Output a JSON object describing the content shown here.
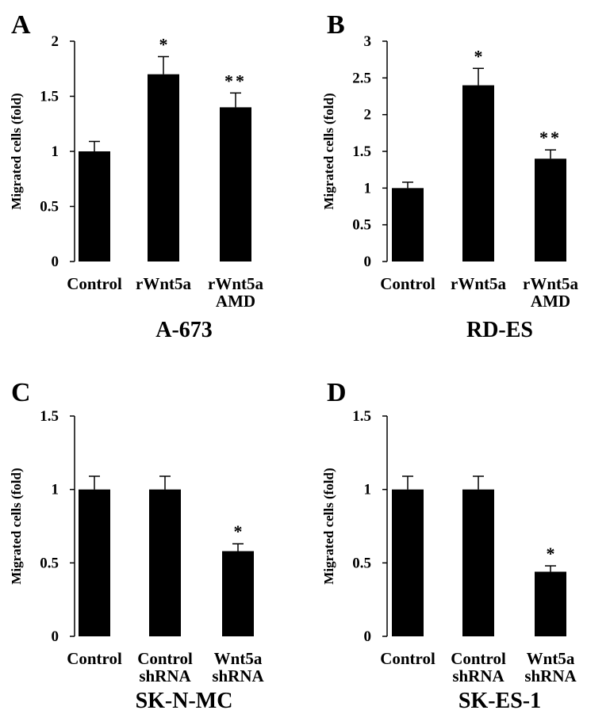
{
  "chart_data": [
    {
      "type": "bar",
      "panel": "A",
      "title": "A-673",
      "ylabel": "Migrated cells (fold)",
      "ylim": [
        0,
        2
      ],
      "yticks": [
        0,
        0.5,
        1,
        1.5,
        2
      ],
      "ytick_labels": [
        "0",
        "0.5",
        "1",
        "1.5",
        "2"
      ],
      "categories": [
        [
          "Control"
        ],
        [
          "rWnt5a"
        ],
        [
          "rWnt5a",
          "AMD"
        ]
      ],
      "values": [
        1.0,
        1.7,
        1.4
      ],
      "errors": [
        0.09,
        0.16,
        0.13
      ],
      "annotations": [
        "",
        "*",
        "**"
      ],
      "bar_color": "#000000"
    },
    {
      "type": "bar",
      "panel": "B",
      "title": "RD-ES",
      "ylabel": "Migrated cells (fold)",
      "ylim": [
        0,
        3
      ],
      "yticks": [
        0,
        0.5,
        1,
        1.5,
        2,
        2.5,
        3
      ],
      "ytick_labels": [
        "0",
        "0.5",
        "1",
        "1.5",
        "2",
        "2.5",
        "3"
      ],
      "categories": [
        [
          "Control"
        ],
        [
          "rWnt5a"
        ],
        [
          "rWnt5a",
          "AMD"
        ]
      ],
      "values": [
        1.0,
        2.4,
        1.4
      ],
      "errors": [
        0.08,
        0.23,
        0.12
      ],
      "annotations": [
        "",
        "*",
        "**"
      ],
      "bar_color": "#000000"
    },
    {
      "type": "bar",
      "panel": "C",
      "title": "SK-N-MC",
      "ylabel": "Migrated cells (fold)",
      "ylim": [
        0,
        1.5
      ],
      "yticks": [
        0,
        0.5,
        1,
        1.5
      ],
      "ytick_labels": [
        "0",
        "0.5",
        "1",
        "1.5"
      ],
      "categories": [
        [
          "Control"
        ],
        [
          "Control",
          "shRNA"
        ],
        [
          "Wnt5a",
          "shRNA"
        ]
      ],
      "values": [
        1.0,
        1.0,
        0.58
      ],
      "errors": [
        0.09,
        0.09,
        0.05
      ],
      "annotations": [
        "",
        "",
        "*"
      ],
      "bar_color": "#000000"
    },
    {
      "type": "bar",
      "panel": "D",
      "title": "SK-ES-1",
      "ylabel": "Migrated cells (fold)",
      "ylim": [
        0,
        1.5
      ],
      "yticks": [
        0,
        0.5,
        1,
        1.5
      ],
      "ytick_labels": [
        "0",
        "0.5",
        "1",
        "1.5"
      ],
      "categories": [
        [
          "Control"
        ],
        [
          "Control",
          "shRNA"
        ],
        [
          "Wnt5a",
          "shRNA"
        ]
      ],
      "values": [
        1.0,
        1.0,
        0.44
      ],
      "errors": [
        0.09,
        0.09,
        0.04
      ],
      "annotations": [
        "",
        "",
        "*"
      ],
      "bar_color": "#000000"
    }
  ]
}
